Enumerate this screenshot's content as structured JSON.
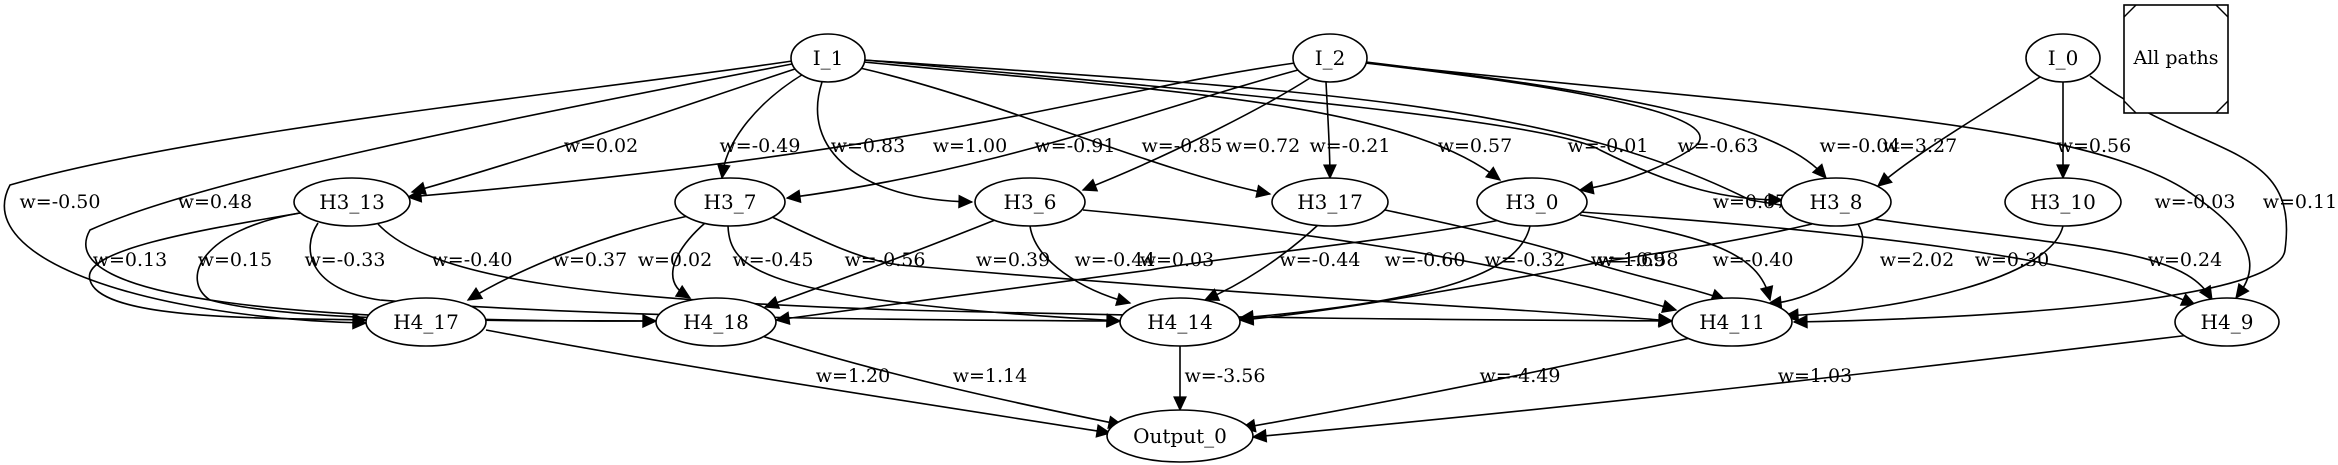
{
  "legend": {
    "label": "All paths"
  },
  "nodes": [
    {
      "id": "I_1",
      "label": "I_1"
    },
    {
      "id": "I_2",
      "label": "I_2"
    },
    {
      "id": "I_0",
      "label": "I_0"
    },
    {
      "id": "H3_13",
      "label": "H3_13"
    },
    {
      "id": "H3_7",
      "label": "H3_7"
    },
    {
      "id": "H3_6",
      "label": "H3_6"
    },
    {
      "id": "H3_17",
      "label": "H3_17"
    },
    {
      "id": "H3_0",
      "label": "H3_0"
    },
    {
      "id": "H3_8",
      "label": "H3_8"
    },
    {
      "id": "H3_10",
      "label": "H3_10"
    },
    {
      "id": "H4_17",
      "label": "H4_17"
    },
    {
      "id": "H4_18",
      "label": "H4_18"
    },
    {
      "id": "H4_14",
      "label": "H4_14"
    },
    {
      "id": "H4_11",
      "label": "H4_11"
    },
    {
      "id": "H4_9",
      "label": "H4_9"
    },
    {
      "id": "Output_0",
      "label": "Output_0"
    }
  ],
  "edges": [
    {
      "id": "e01",
      "from": "I_1",
      "to": "H3_13",
      "label": "w=0.02"
    },
    {
      "id": "e02",
      "from": "I_1",
      "to": "H3_7",
      "label": "w=-0.49"
    },
    {
      "id": "e03",
      "from": "I_1",
      "to": "H3_6",
      "label": "w=0.83"
    },
    {
      "id": "e04",
      "from": "I_1",
      "to": "H3_17",
      "label": "w=-0.85"
    },
    {
      "id": "e05",
      "from": "I_1",
      "to": "H3_0",
      "label": "w=0.57"
    },
    {
      "id": "e06",
      "from": "I_1",
      "to": "H3_8",
      "label": "w=-0.01"
    },
    {
      "id": "e07",
      "from": "I_1",
      "to": "H4_9",
      "label": "w=0.67"
    },
    {
      "id": "e08",
      "from": "I_1",
      "to": "H4_17",
      "label": "w=-0.50"
    },
    {
      "id": "e09",
      "from": "I_1",
      "to": "H4_18",
      "label": "w=0.48"
    },
    {
      "id": "e10",
      "from": "I_2",
      "to": "H3_13",
      "label": "w=1.00"
    },
    {
      "id": "e11",
      "from": "I_2",
      "to": "H3_7",
      "label": "w=-0.91"
    },
    {
      "id": "e12",
      "from": "I_2",
      "to": "H3_6",
      "label": "w=0.72"
    },
    {
      "id": "e13",
      "from": "I_2",
      "to": "H3_17",
      "label": "w=-0.21"
    },
    {
      "id": "e14",
      "from": "I_2",
      "to": "H3_0",
      "label": "w=-0.63"
    },
    {
      "id": "e15",
      "from": "I_2",
      "to": "H3_8",
      "label": "w=-0.04"
    },
    {
      "id": "e16",
      "from": "I_2",
      "to": "H4_9",
      "label": "w=-0.03"
    },
    {
      "id": "e17",
      "from": "I_0",
      "to": "H3_8",
      "label": "w=3.27"
    },
    {
      "id": "e18",
      "from": "I_0",
      "to": "H3_10",
      "label": "w=0.56"
    },
    {
      "id": "e19",
      "from": "I_0",
      "to": "H4_11",
      "label": "w=0.11"
    },
    {
      "id": "e20",
      "from": "H3_13",
      "to": "H4_17",
      "label": "w=0.13"
    },
    {
      "id": "e21",
      "from": "H3_13",
      "to": "H4_18",
      "label": "w=0.15"
    },
    {
      "id": "e22",
      "from": "H3_13",
      "to": "H4_14",
      "label": "w=-0.33"
    },
    {
      "id": "e23",
      "from": "H3_13",
      "to": "H4_11",
      "label": "w=-0.40"
    },
    {
      "id": "e24",
      "from": "H3_7",
      "to": "H4_17",
      "label": "w=0.37"
    },
    {
      "id": "e25",
      "from": "H3_7",
      "to": "H4_18",
      "label": "w=0.02"
    },
    {
      "id": "e26",
      "from": "H3_7",
      "to": "H4_14",
      "label": "w=-0.45"
    },
    {
      "id": "e27",
      "from": "H3_7",
      "to": "H4_11",
      "label": "w=-0.56"
    },
    {
      "id": "e28",
      "from": "H3_6",
      "to": "H4_18",
      "label": "w=0.39"
    },
    {
      "id": "e29",
      "from": "H3_6",
      "to": "H4_14",
      "label": "w=-0.44"
    },
    {
      "id": "e30",
      "from": "H3_6",
      "to": "H4_11",
      "label": "w=-0.60"
    },
    {
      "id": "e31",
      "from": "H3_17",
      "to": "H4_14",
      "label": "w=-0.44"
    },
    {
      "id": "e32",
      "from": "H3_17",
      "to": "H4_11",
      "label": "w=-0.58"
    },
    {
      "id": "e33",
      "from": "H3_0",
      "to": "H4_18",
      "label": "w=0.03"
    },
    {
      "id": "e34",
      "from": "H3_0",
      "to": "H4_14",
      "label": "w=-0.32"
    },
    {
      "id": "e35",
      "from": "H3_0",
      "to": "H4_11",
      "label": "w=-0.40"
    },
    {
      "id": "e36",
      "from": "H3_0",
      "to": "H4_9",
      "label": "w=0.24"
    },
    {
      "id": "e37",
      "from": "H3_8",
      "to": "H4_14",
      "label": "w=1.69"
    },
    {
      "id": "e38",
      "from": "H3_8",
      "to": "H4_11",
      "label": "w=2.02"
    },
    {
      "id": "e39",
      "from": "H3_10",
      "to": "H4_11",
      "label": "w=0.30"
    },
    {
      "id": "e40",
      "from": "H4_17",
      "to": "Output_0",
      "label": "w=1.20"
    },
    {
      "id": "e41",
      "from": "H4_18",
      "to": "Output_0",
      "label": "w=1.14"
    },
    {
      "id": "e42",
      "from": "H4_14",
      "to": "Output_0",
      "label": "w=-3.56"
    },
    {
      "id": "e43",
      "from": "H4_11",
      "to": "Output_0",
      "label": "w=-4.49"
    },
    {
      "id": "e44",
      "from": "H4_9",
      "to": "Output_0",
      "label": "w=1.03"
    }
  ]
}
